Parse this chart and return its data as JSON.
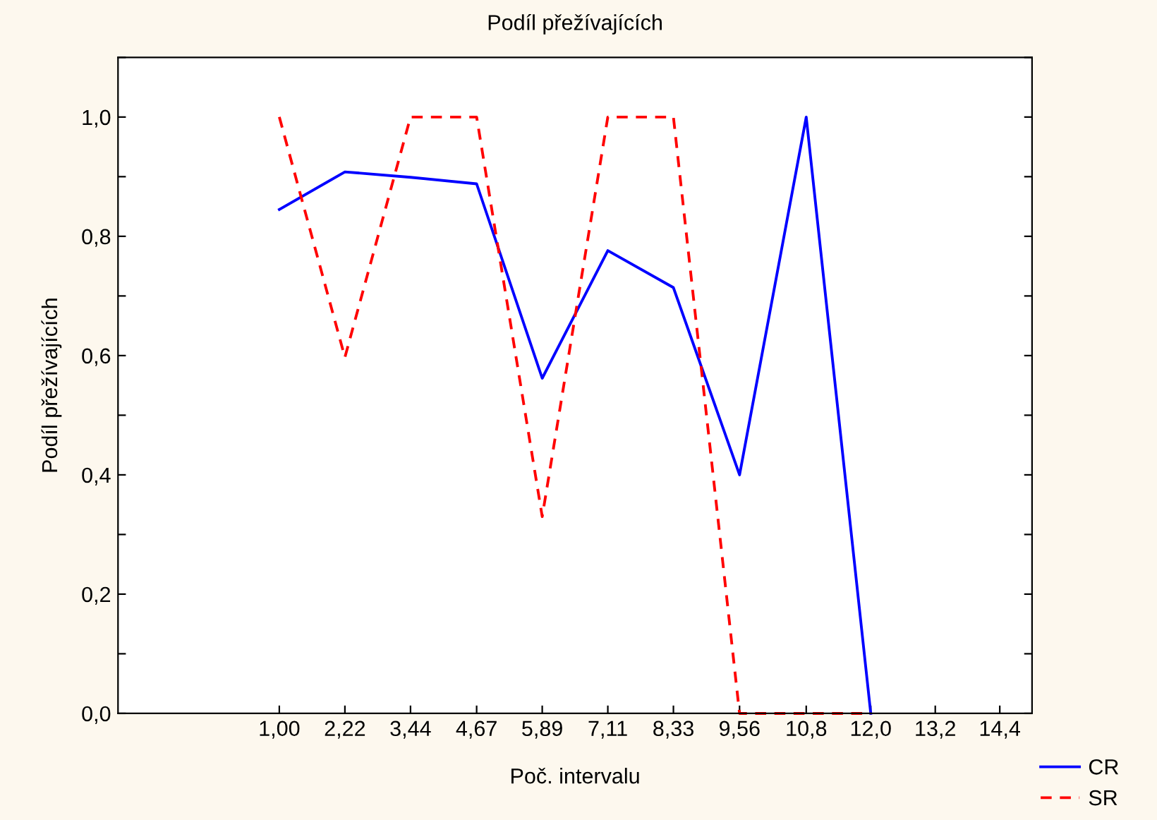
{
  "chart_data": {
    "type": "line",
    "title": "Podíl přežívajících",
    "xlabel": "Poč. intervalu",
    "ylabel": "Podíl přežívajících",
    "x": [
      1.0,
      2.22,
      3.44,
      4.67,
      5.89,
      7.11,
      8.33,
      9.56,
      10.8,
      12.0
    ],
    "xlim": [
      -2.0,
      15.0
    ],
    "xticks": [
      {
        "value": 1.0,
        "label": "1,00"
      },
      {
        "value": 2.22,
        "label": "2,22"
      },
      {
        "value": 3.44,
        "label": "3,44"
      },
      {
        "value": 4.67,
        "label": "4,67"
      },
      {
        "value": 5.89,
        "label": "5,89"
      },
      {
        "value": 7.11,
        "label": "7,11"
      },
      {
        "value": 8.33,
        "label": "8,33"
      },
      {
        "value": 9.56,
        "label": "9,56"
      },
      {
        "value": 10.8,
        "label": "10,8"
      },
      {
        "value": 12.0,
        "label": "12,0"
      },
      {
        "value": 13.2,
        "label": "13,2"
      },
      {
        "value": 14.4,
        "label": "14,4"
      }
    ],
    "ylim": [
      0,
      1.1
    ],
    "yticks": [
      {
        "value": 0,
        "label": "0,0"
      },
      {
        "value": 0.1,
        "label": null
      },
      {
        "value": 0.2,
        "label": "0,2"
      },
      {
        "value": 0.3,
        "label": null
      },
      {
        "value": 0.4,
        "label": "0,4"
      },
      {
        "value": 0.5,
        "label": null
      },
      {
        "value": 0.6,
        "label": "0,6"
      },
      {
        "value": 0.7,
        "label": null
      },
      {
        "value": 0.8,
        "label": "0,8"
      },
      {
        "value": 0.9,
        "label": null
      },
      {
        "value": 1.0,
        "label": "1,0"
      },
      {
        "value": 1.1,
        "label": null
      }
    ],
    "series": [
      {
        "name": "CR",
        "color": "#0000ff",
        "line_style": "solid",
        "values": [
          0.845,
          0.908,
          0.899,
          0.888,
          0.562,
          0.776,
          0.714,
          0.4,
          1.0,
          0.0
        ]
      },
      {
        "name": "SR",
        "color": "#ff0000",
        "line_style": "dashed",
        "values": [
          1.0,
          0.597,
          1.0,
          1.0,
          0.33,
          1.0,
          1.0,
          0.0,
          0.0,
          0.0
        ]
      }
    ],
    "legend": "bottom right",
    "grid": false,
    "marker": "none"
  }
}
